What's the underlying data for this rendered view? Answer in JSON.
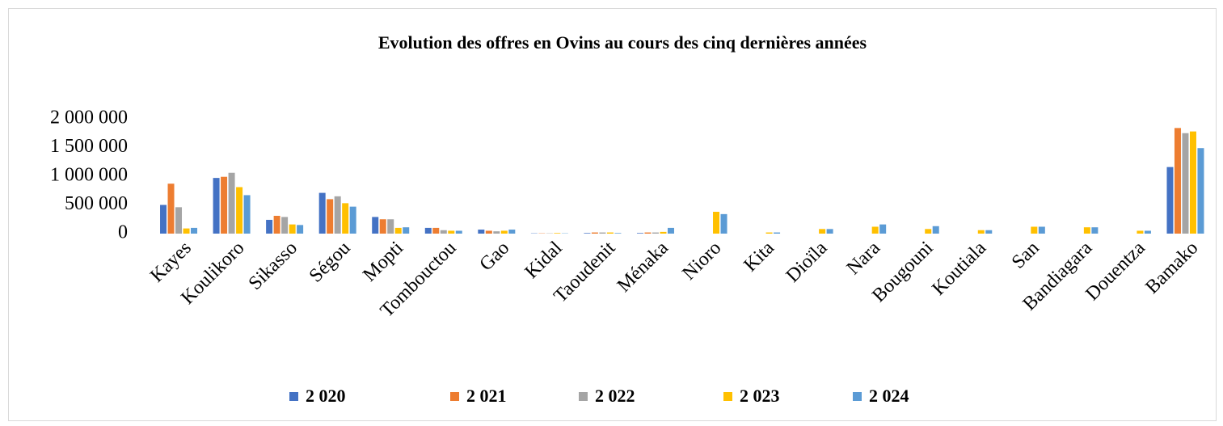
{
  "chart_data": {
    "type": "bar",
    "title": "Evolution des offres en  Ovins au cours des cinq dernières années",
    "categories": [
      "Kayes",
      "Koulikoro",
      "Sikasso",
      "Ségou",
      "Mopti",
      "Tombouctou",
      "Gao",
      "Kidal",
      "Taoudenit",
      "Ménaka",
      "Nioro",
      "Kita",
      "Dioïla",
      "Nara",
      "Bougouni",
      "Koutiala",
      "San",
      "Bandiagara",
      "Douentza",
      "Bamako"
    ],
    "series": [
      {
        "name": "2 020",
        "color": "#4472c4",
        "values": [
          500000,
          970000,
          240000,
          710000,
          290000,
          100000,
          70000,
          5000,
          10000,
          10000,
          null,
          null,
          null,
          null,
          null,
          null,
          null,
          null,
          null,
          1160000
        ]
      },
      {
        "name": "2 021",
        "color": "#ed7d31",
        "values": [
          870000,
          990000,
          310000,
          600000,
          250000,
          100000,
          50000,
          5000,
          20000,
          20000,
          null,
          null,
          null,
          null,
          null,
          null,
          null,
          null,
          null,
          1840000
        ]
      },
      {
        "name": "2 022",
        "color": "#a5a5a5",
        "values": [
          460000,
          1060000,
          290000,
          650000,
          250000,
          60000,
          40000,
          5000,
          20000,
          20000,
          null,
          null,
          null,
          null,
          null,
          null,
          null,
          null,
          null,
          1750000
        ]
      },
      {
        "name": "2 023",
        "color": "#ffc000",
        "values": [
          90000,
          810000,
          160000,
          530000,
          100000,
          50000,
          50000,
          10000,
          20000,
          30000,
          380000,
          20000,
          80000,
          120000,
          80000,
          60000,
          120000,
          110000,
          50000,
          1780000
        ]
      },
      {
        "name": "2 024",
        "color": "#5b9bd5",
        "values": [
          100000,
          670000,
          150000,
          470000,
          110000,
          50000,
          70000,
          5000,
          10000,
          100000,
          340000,
          20000,
          80000,
          160000,
          130000,
          60000,
          120000,
          110000,
          50000,
          1490000
        ]
      }
    ],
    "ylim": [
      0,
      2000000
    ],
    "yticks": [
      0,
      {
        "value": 500000,
        "label": "500 000"
      },
      {
        "value": 1000000,
        "label": "1 000 000"
      },
      {
        "value": 1500000,
        "label": "1 500 000"
      },
      {
        "value": 2000000,
        "label": "2 000 000"
      }
    ],
    "grid": false,
    "legend": "bottom"
  }
}
